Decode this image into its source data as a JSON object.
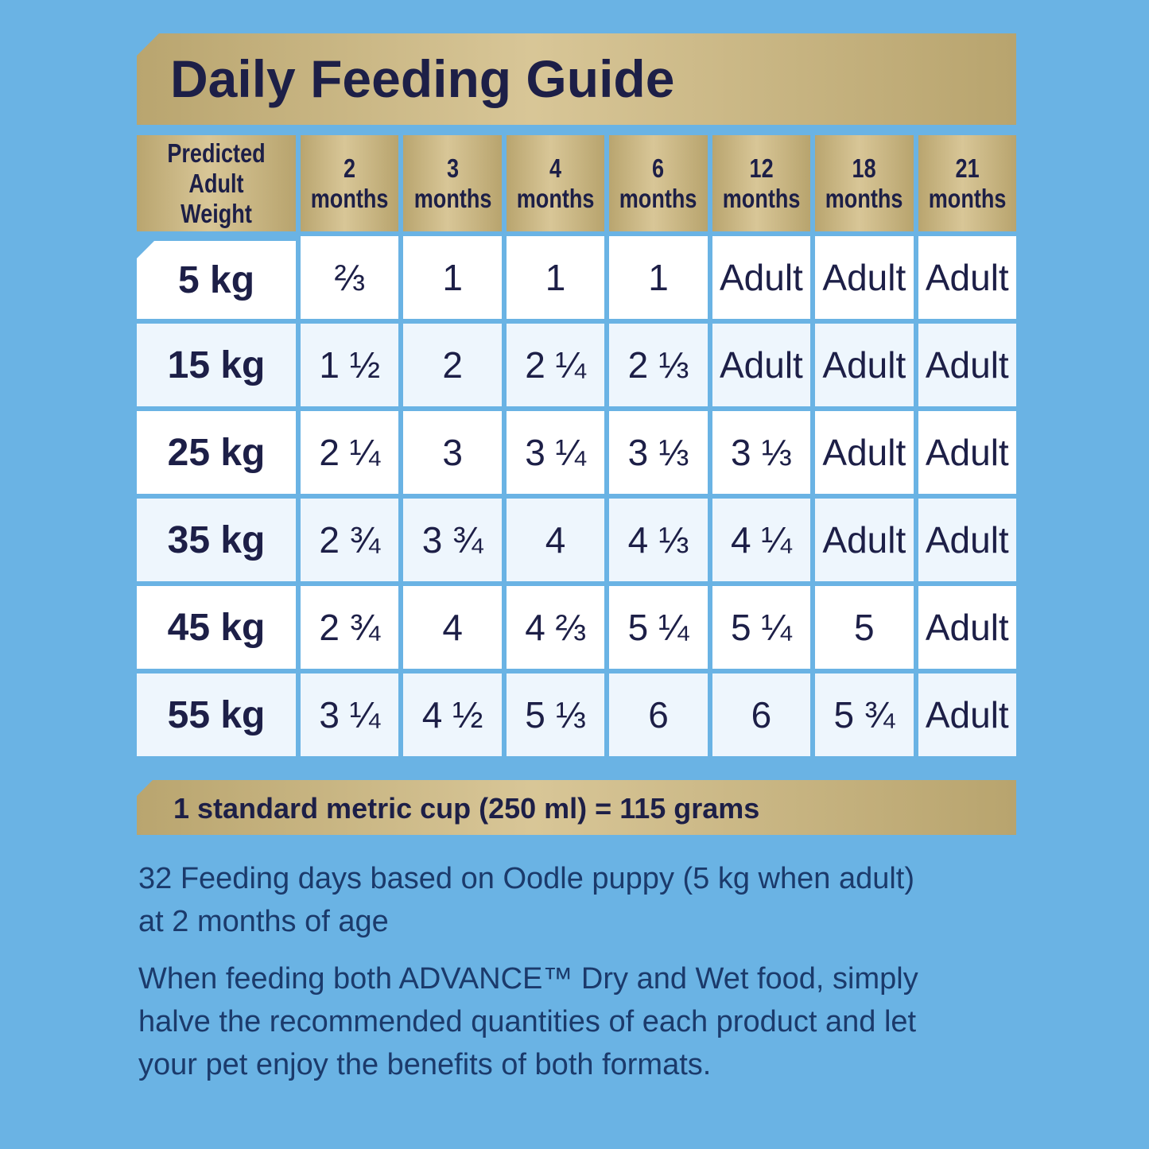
{
  "title": "Daily Feeding Guide",
  "table": {
    "header": [
      [
        "Predicted",
        "Adult Weight"
      ],
      [
        "2",
        "months"
      ],
      [
        "3",
        "months"
      ],
      [
        "4",
        "months"
      ],
      [
        "6",
        "months"
      ],
      [
        "12",
        "months"
      ],
      [
        "18",
        "months"
      ],
      [
        "21",
        "months"
      ]
    ],
    "rows": [
      [
        "5 kg",
        "⅔",
        "1",
        "1",
        "1",
        "Adult",
        "Adult",
        "Adult"
      ],
      [
        "15 kg",
        "1 ½",
        "2",
        "2 ¼",
        "2 ⅓",
        "Adult",
        "Adult",
        "Adult"
      ],
      [
        "25 kg",
        "2 ¼",
        "3",
        "3 ¼",
        "3 ⅓",
        "3 ⅓",
        "Adult",
        "Adult"
      ],
      [
        "35 kg",
        "2 ¾",
        "3 ¾",
        "4",
        "4 ⅓",
        "4 ¼",
        "Adult",
        "Adult"
      ],
      [
        "45 kg",
        "2 ¾",
        "4",
        "4 ⅔",
        "5 ¼",
        "5 ¼",
        "5",
        "Adult"
      ],
      [
        "55 kg",
        "3 ¼",
        "4 ½",
        "5 ⅓",
        "6",
        "6",
        "5 ¾",
        "Adult"
      ]
    ]
  },
  "footer": "1 standard metric cup (250 ml) = 115 grams",
  "notes": [
    "32 Feeding days based on Oodle puppy (5 kg when adult) at 2 months of age",
    "When feeding both ADVANCE™ Dry and Wet food, simply halve the recommended quantities of each product and let your pet enjoy the benefits of both formats."
  ]
}
